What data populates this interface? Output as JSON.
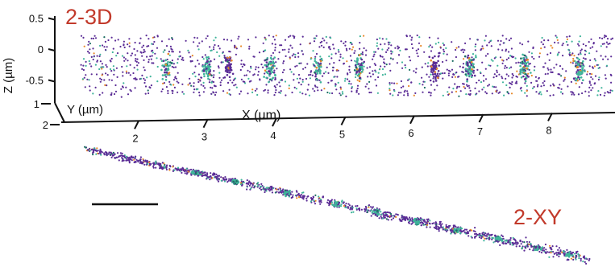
{
  "chart_data": [
    {
      "type": "scatter",
      "panel_label": "2-3D",
      "xlabel": "X (µm)",
      "ylabel": "Y (µm)",
      "zlabel": "Z (µm)",
      "x_ticks": [
        "2",
        "3",
        "4",
        "5",
        "6",
        "7",
        "8"
      ],
      "y_ticks": [
        "1",
        "2"
      ],
      "z_ticks": [
        "0.5",
        "0",
        "-0.5"
      ],
      "xlim": [
        1.2,
        8.7
      ],
      "zlim": [
        -0.8,
        0.6
      ],
      "colors": {
        "purple": "#5b2d96",
        "teal": "#3fb49a",
        "orange": "#e8892a",
        "dark_teal": "#1d6e63"
      },
      "series": [
        {
          "color": "purple",
          "share": 0.78
        },
        {
          "color": "teal",
          "share": 0.15
        },
        {
          "color": "orange",
          "share": 0.05
        },
        {
          "color": "dark_teal",
          "share": 0.02
        }
      ],
      "clusters_x": [
        2.4,
        3.0,
        3.3,
        3.9,
        4.6,
        5.2,
        6.3,
        6.8,
        7.6,
        8.4
      ],
      "grid": false,
      "legend": "none"
    },
    {
      "type": "scatter",
      "panel_label": "2-XY",
      "scale_bar": true,
      "colors": {
        "purple": "#5b2d96",
        "teal": "#3fb49a",
        "orange": "#e8892a",
        "dark_teal": "#1d6e63"
      },
      "grid": false,
      "legend": "none"
    }
  ]
}
